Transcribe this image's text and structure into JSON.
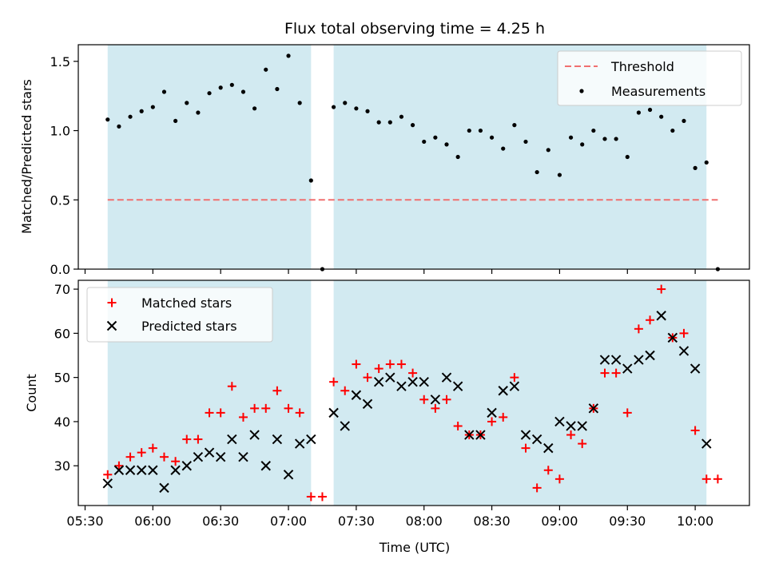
{
  "colors": {
    "band": "#ADD8E6",
    "threshold": "#f07070",
    "matched": "#ff0000",
    "predicted": "#000000",
    "measurement": "#000000"
  },
  "chart_data": [
    {
      "type": "scatter",
      "title": "Flux total observing time = 4.25 h",
      "xlabel": "",
      "ylabel": "Matched/Predicted stars",
      "ylim": [
        0,
        1.62
      ],
      "yticks": [
        "0.0",
        "0.5",
        "1.0",
        "1.5"
      ],
      "ytick_values": [
        0,
        0.5,
        1.0,
        1.5
      ],
      "x_unit": "time (HH:MM)",
      "xlim": [
        "05:27",
        "10:24"
      ],
      "observing_windows": [
        [
          "05:40",
          "07:10"
        ],
        [
          "07:20",
          "10:05"
        ]
      ],
      "threshold": {
        "name": "Threshold",
        "value": 0.5,
        "x_range": [
          "05:40",
          "10:10"
        ]
      },
      "series": [
        {
          "name": "Measurements",
          "x": [
            "05:40",
            "05:45",
            "05:50",
            "05:55",
            "06:00",
            "06:05",
            "06:10",
            "06:15",
            "06:20",
            "06:25",
            "06:30",
            "06:35",
            "06:40",
            "06:45",
            "06:50",
            "06:55",
            "07:00",
            "07:05",
            "07:10",
            "07:15",
            "07:20",
            "07:25",
            "07:30",
            "07:35",
            "07:40",
            "07:45",
            "07:50",
            "07:55",
            "08:00",
            "08:05",
            "08:10",
            "08:15",
            "08:20",
            "08:25",
            "08:30",
            "08:35",
            "08:40",
            "08:45",
            "08:50",
            "08:55",
            "09:00",
            "09:05",
            "09:10",
            "09:15",
            "09:20",
            "09:25",
            "09:30",
            "09:35",
            "09:40",
            "09:45",
            "09:50",
            "09:55",
            "10:00",
            "10:05",
            "10:10"
          ],
          "y": [
            1.08,
            1.03,
            1.1,
            1.14,
            1.17,
            1.28,
            1.07,
            1.2,
            1.13,
            1.27,
            1.31,
            1.33,
            1.28,
            1.16,
            1.44,
            1.3,
            1.54,
            1.2,
            0.64,
            0.0,
            1.17,
            1.2,
            1.16,
            1.14,
            1.06,
            1.06,
            1.1,
            1.04,
            0.92,
            0.95,
            0.9,
            0.81,
            1.0,
            1.0,
            0.95,
            0.87,
            1.04,
            0.92,
            0.7,
            0.86,
            0.68,
            0.95,
            0.9,
            1.0,
            0.94,
            0.94,
            0.81,
            1.13,
            1.15,
            1.1,
            1.0,
            1.07,
            0.73,
            0.77,
            0.0
          ]
        }
      ],
      "legend": {
        "position": "top-right",
        "entries": [
          "Threshold",
          "Measurements"
        ]
      }
    },
    {
      "type": "scatter",
      "title": "",
      "xlabel": "Time (UTC)",
      "ylabel": "Count",
      "ylim": [
        21,
        72
      ],
      "yticks": [
        "30",
        "40",
        "50",
        "60",
        "70"
      ],
      "ytick_values": [
        30,
        40,
        50,
        60,
        70
      ],
      "xticks": [
        "05:30",
        "06:00",
        "06:30",
        "07:00",
        "07:30",
        "08:00",
        "08:30",
        "09:00",
        "09:30",
        "10:00"
      ],
      "xlim": [
        "05:27",
        "10:24"
      ],
      "observing_windows": [
        [
          "05:40",
          "07:10"
        ],
        [
          "07:20",
          "10:05"
        ]
      ],
      "series": [
        {
          "name": "Matched stars",
          "marker": "+",
          "x": [
            "05:40",
            "05:45",
            "05:50",
            "05:55",
            "06:00",
            "06:05",
            "06:10",
            "06:15",
            "06:20",
            "06:25",
            "06:30",
            "06:35",
            "06:40",
            "06:45",
            "06:50",
            "06:55",
            "07:00",
            "07:05",
            "07:10",
            "07:15",
            "07:20",
            "07:25",
            "07:30",
            "07:35",
            "07:40",
            "07:45",
            "07:50",
            "07:55",
            "08:00",
            "08:05",
            "08:10",
            "08:15",
            "08:20",
            "08:25",
            "08:30",
            "08:35",
            "08:40",
            "08:45",
            "08:50",
            "08:55",
            "09:00",
            "09:05",
            "09:10",
            "09:15",
            "09:20",
            "09:25",
            "09:30",
            "09:35",
            "09:40",
            "09:45",
            "09:50",
            "09:55",
            "10:00",
            "10:05",
            "10:10"
          ],
          "y": [
            28,
            30,
            32,
            33,
            34,
            32,
            31,
            36,
            36,
            42,
            42,
            48,
            41,
            43,
            43,
            47,
            43,
            42,
            23,
            23,
            49,
            47,
            53,
            50,
            52,
            53,
            53,
            51,
            45,
            43,
            45,
            39,
            37,
            37,
            40,
            41,
            50,
            34,
            25,
            29,
            27,
            37,
            35,
            43,
            51,
            51,
            42,
            61,
            63,
            70,
            59,
            60,
            38,
            27,
            27
          ]
        },
        {
          "name": "Predicted stars",
          "marker": "x",
          "x": [
            "05:40",
            "05:45",
            "05:50",
            "05:55",
            "06:00",
            "06:05",
            "06:10",
            "06:15",
            "06:20",
            "06:25",
            "06:30",
            "06:35",
            "06:40",
            "06:45",
            "06:50",
            "06:55",
            "07:00",
            "07:05",
            "07:10",
            "07:20",
            "07:25",
            "07:30",
            "07:35",
            "07:40",
            "07:45",
            "07:50",
            "07:55",
            "08:00",
            "08:05",
            "08:10",
            "08:15",
            "08:20",
            "08:25",
            "08:30",
            "08:35",
            "08:40",
            "08:45",
            "08:50",
            "08:55",
            "09:00",
            "09:05",
            "09:10",
            "09:15",
            "09:20",
            "09:25",
            "09:30",
            "09:35",
            "09:40",
            "09:45",
            "09:50",
            "09:55",
            "10:00",
            "10:05"
          ],
          "y": [
            26,
            29,
            29,
            29,
            29,
            25,
            29,
            30,
            32,
            33,
            32,
            36,
            32,
            37,
            30,
            36,
            28,
            35,
            36,
            42,
            39,
            46,
            44,
            49,
            50,
            48,
            49,
            49,
            45,
            50,
            48,
            37,
            37,
            42,
            47,
            48,
            37,
            36,
            34,
            40,
            39,
            39,
            43,
            54,
            54,
            52,
            54,
            55,
            64,
            59,
            56,
            52,
            35
          ]
        }
      ],
      "legend": {
        "position": "top-left",
        "entries": [
          "Matched stars",
          "Predicted stars"
        ]
      }
    }
  ]
}
